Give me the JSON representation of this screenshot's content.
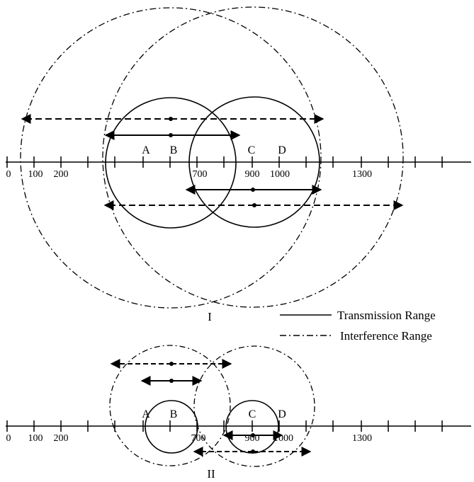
{
  "panels": [
    {
      "label": "I",
      "axis_ticks": [
        "0",
        "100",
        "200",
        "700",
        "900",
        "1000",
        "1300"
      ],
      "nodes": [
        "A",
        "B",
        "C",
        "D"
      ]
    },
    {
      "label": "II",
      "axis_ticks": [
        "0",
        "100",
        "200",
        "700",
        "900",
        "1000",
        "1300"
      ],
      "nodes": [
        "A",
        "B",
        "C",
        "D"
      ]
    }
  ],
  "legend": {
    "transmission": "Transmission Range",
    "interference": "Interference Range"
  },
  "colors": {
    "ink": "#000000",
    "background": "#ffffff"
  }
}
